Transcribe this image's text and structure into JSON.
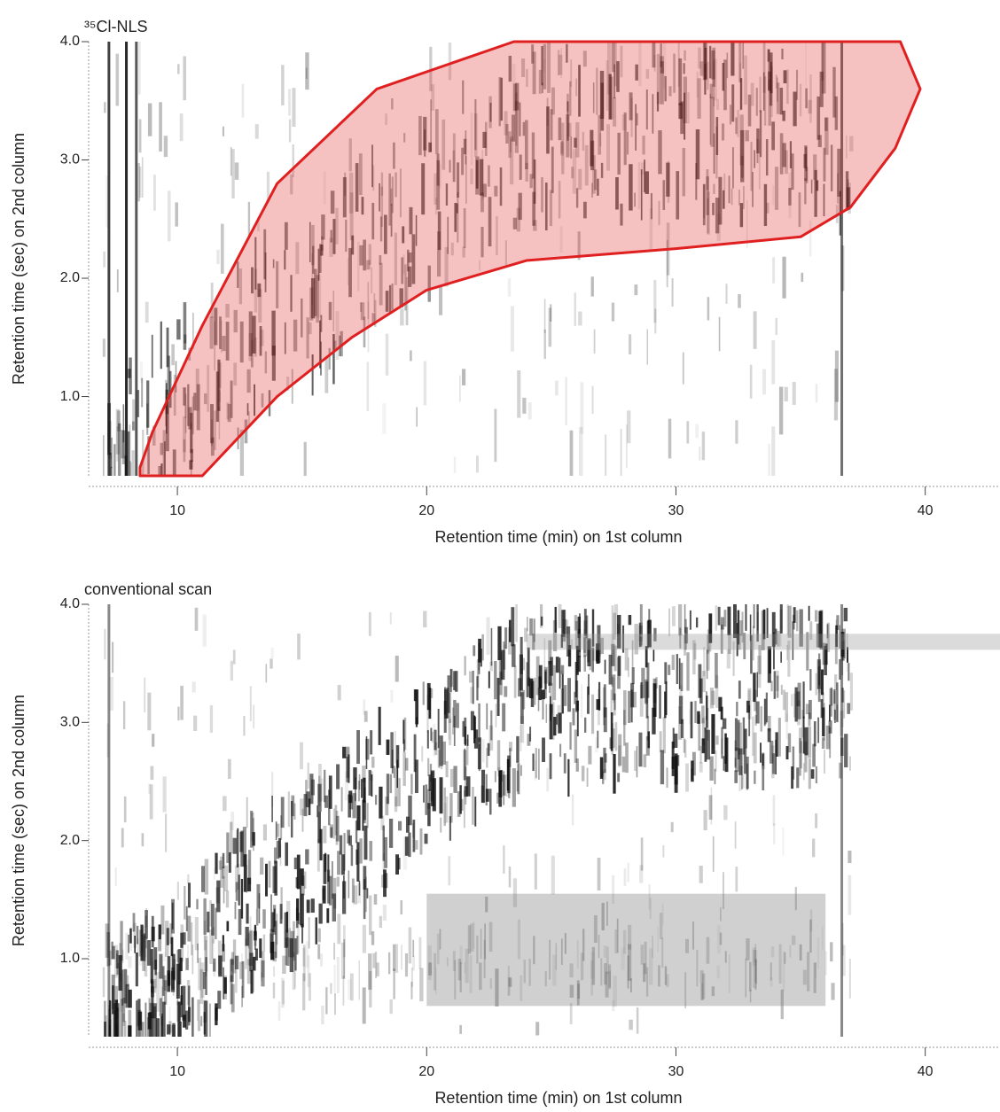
{
  "chart_data": [
    {
      "type": "chromatogram-2d",
      "title": "³⁵Cl-NLS",
      "x_label": "Retention time  (min) on 1st column",
      "y_label": "Retention time  (sec) on 2nd column",
      "xlim": [
        6.44,
        43.0
      ],
      "ylim": [
        0.33,
        4.0
      ],
      "xticks": [
        10,
        20,
        30,
        40
      ],
      "yticks": [
        {
          "value": 1,
          "label": "1.0"
        },
        {
          "value": 2,
          "label": "2.0"
        },
        {
          "value": 3,
          "label": "3.0"
        },
        {
          "value": 4,
          "label": "4.0"
        }
      ],
      "region": {
        "color": "#e02020",
        "x": [
          8.5,
          11,
          14,
          17,
          20,
          24,
          30,
          35,
          37,
          38.8,
          39.8,
          39,
          23.5,
          18,
          14,
          11,
          9,
          8.5
        ],
        "y": [
          0.33,
          0.33,
          1.0,
          1.5,
          1.9,
          2.15,
          2.25,
          2.35,
          2.6,
          3.1,
          3.6,
          4.0,
          4.0,
          3.6,
          2.8,
          1.6,
          0.7,
          0.4
        ]
      }
    },
    {
      "type": "chromatogram-2d",
      "title": "conventional scan",
      "x_label": "Retention time  (min) on 1st column",
      "y_label": "Retention time  (sec) on 2nd column",
      "xlim": [
        6.44,
        43.0
      ],
      "ylim": [
        0.34,
        4.0
      ],
      "xticks": [
        10,
        20,
        30,
        40
      ],
      "yticks": [
        {
          "value": 1,
          "label": "1.0"
        },
        {
          "value": 2,
          "label": "2.0"
        },
        {
          "value": 3,
          "label": "3.0"
        },
        {
          "value": 4,
          "label": "4.0"
        }
      ]
    }
  ]
}
